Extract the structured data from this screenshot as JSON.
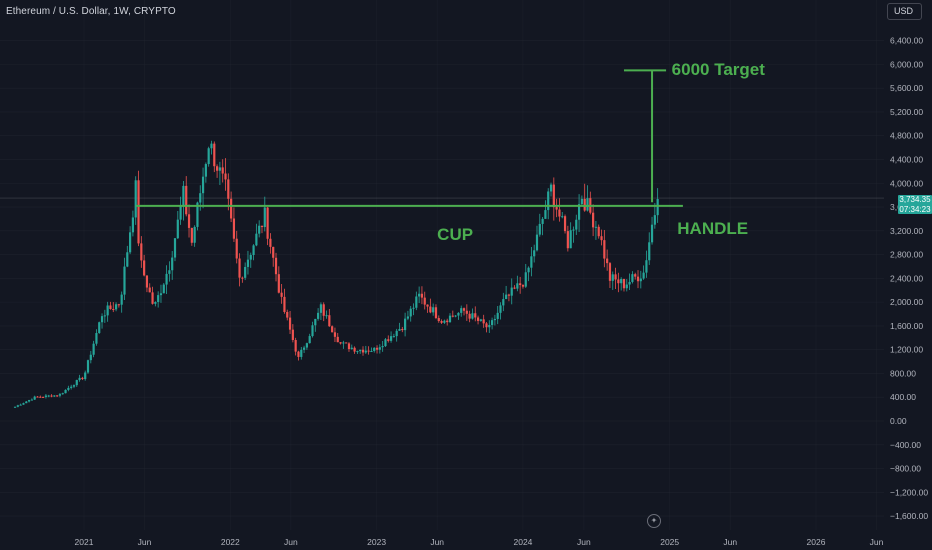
{
  "header": {
    "symbol_title": "Ethereum / U.S. Dollar, 1W, CRYPTO",
    "currency_label": "USD"
  },
  "price_badge": {
    "price": "3,734.35",
    "countdown": "07:34:23",
    "color": "#26a69a"
  },
  "colors": {
    "background": "#131722",
    "up_candle": "#26a69a",
    "down_candle": "#ef5350",
    "drawing": "#4caf50",
    "grid": "#2a2e39",
    "axis_text": "#b2b5be"
  },
  "icons": {
    "goto_realtime": "goto-realtime-icon"
  },
  "chart_data": {
    "type": "candlestick",
    "title": "Ethereum / U.S. Dollar, 1W, CRYPTO",
    "ylim": [
      -1600,
      6400
    ],
    "y_ticks": [
      "6,400.00",
      "6,000.00",
      "5,600.00",
      "5,200.00",
      "4,800.00",
      "4,400.00",
      "4,000.00",
      "3,600.00",
      "3,200.00",
      "2,800.00",
      "2,400.00",
      "2,000.00",
      "1,600.00",
      "1,200.00",
      "800.00",
      "400.00",
      "0.00",
      "−400.00",
      "−800.00",
      "−1,200.00",
      "−1,600.00"
    ],
    "y_tick_values": [
      6400,
      6000,
      5600,
      5200,
      4800,
      4400,
      4000,
      3600,
      3200,
      2800,
      2400,
      2000,
      1600,
      1200,
      800,
      400,
      0,
      -400,
      -800,
      -1200,
      -1600
    ],
    "x_ticks": [
      "2021",
      "Jun",
      "2022",
      "Jun",
      "2023",
      "Jun",
      "2024",
      "Jun",
      "2025",
      "Jun",
      "2026",
      "Jun"
    ],
    "x_tick_dates": [
      "2021-01-01",
      "2021-06-01",
      "2022-01-01",
      "2022-06-01",
      "2023-01-01",
      "2023-06-01",
      "2024-01-01",
      "2024-06-01",
      "2025-01-01",
      "2025-06-01",
      "2026-01-01",
      "2026-06-01"
    ],
    "last_price": 3734.35,
    "price_anchors": [
      {
        "date": "2020-07-13",
        "price": 240
      },
      {
        "date": "2020-09-01",
        "price": 400
      },
      {
        "date": "2020-11-01",
        "price": 440
      },
      {
        "date": "2020-12-01",
        "price": 600
      },
      {
        "date": "2021-01-01",
        "price": 750
      },
      {
        "date": "2021-02-15",
        "price": 1800
      },
      {
        "date": "2021-04-01",
        "price": 2000
      },
      {
        "date": "2021-05-10",
        "price": 3900
      },
      {
        "date": "2021-05-20",
        "price": 2700
      },
      {
        "date": "2021-06-25",
        "price": 1900
      },
      {
        "date": "2021-08-01",
        "price": 2600
      },
      {
        "date": "2021-09-06",
        "price": 3800
      },
      {
        "date": "2021-09-27",
        "price": 3000
      },
      {
        "date": "2021-11-08",
        "price": 4700
      },
      {
        "date": "2021-12-20",
        "price": 3900
      },
      {
        "date": "2022-01-24",
        "price": 2400
      },
      {
        "date": "2022-03-28",
        "price": 3450
      },
      {
        "date": "2022-05-09",
        "price": 2000
      },
      {
        "date": "2022-06-20",
        "price": 1050
      },
      {
        "date": "2022-08-15",
        "price": 1900
      },
      {
        "date": "2022-10-03",
        "price": 1300
      },
      {
        "date": "2022-11-14",
        "price": 1200
      },
      {
        "date": "2022-12-26",
        "price": 1200
      },
      {
        "date": "2023-03-06",
        "price": 1600
      },
      {
        "date": "2023-04-17",
        "price": 2100
      },
      {
        "date": "2023-06-12",
        "price": 1700
      },
      {
        "date": "2023-08-07",
        "price": 1850
      },
      {
        "date": "2023-10-09",
        "price": 1550
      },
      {
        "date": "2023-11-13",
        "price": 2000
      },
      {
        "date": "2024-01-08",
        "price": 2400
      },
      {
        "date": "2024-03-11",
        "price": 3900
      },
      {
        "date": "2024-04-22",
        "price": 3000
      },
      {
        "date": "2024-05-27",
        "price": 3800
      },
      {
        "date": "2024-07-08",
        "price": 3200
      },
      {
        "date": "2024-08-05",
        "price": 2400
      },
      {
        "date": "2024-09-09",
        "price": 2300
      },
      {
        "date": "2024-10-28",
        "price": 2500
      },
      {
        "date": "2024-11-18",
        "price": 3300
      },
      {
        "date": "2024-12-02",
        "price": 3734
      }
    ],
    "drawings": {
      "resistance_line": {
        "start_date": "2021-05-10",
        "end_date": "2025-02-03",
        "price": 3620
      },
      "target_vertical": {
        "date": "2024-11-18",
        "from_price": 3680,
        "to_price": 5900
      },
      "target_horizontal": {
        "start_date": "2024-09-09",
        "end_date": "2024-12-23",
        "price": 5900
      }
    },
    "annotations": [
      {
        "text": "6000 Target",
        "date": "2025-01-06",
        "price": 5925
      },
      {
        "text": "CUP",
        "date": "2023-06-01",
        "price": 3150
      },
      {
        "text": "HANDLE",
        "date": "2025-01-20",
        "price": 3250
      }
    ]
  }
}
